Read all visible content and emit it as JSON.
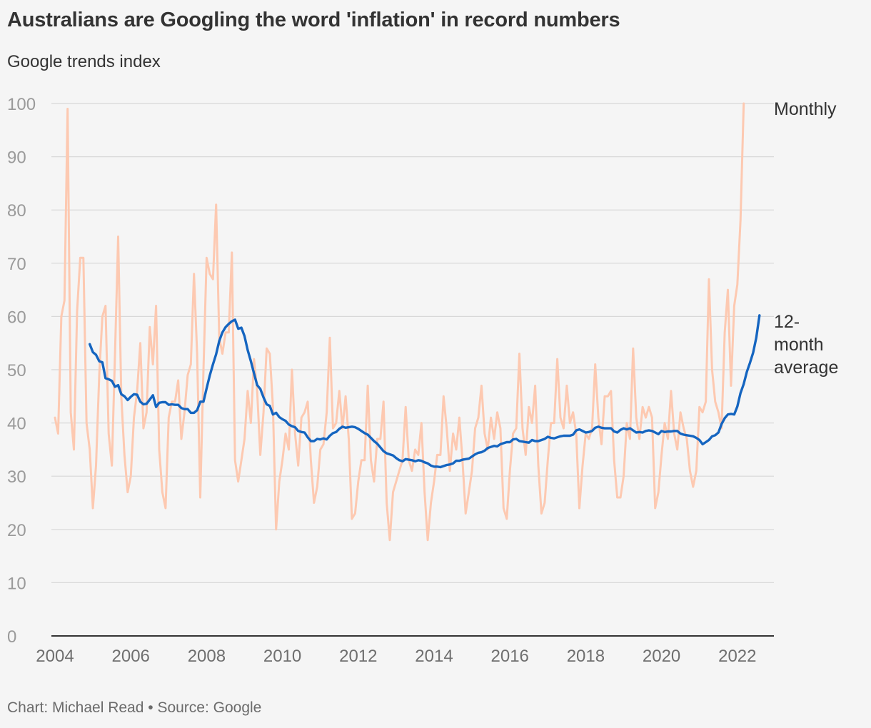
{
  "title": "Australians are Googling the word 'inflation' in record numbers",
  "subtitle": "Google trends index",
  "footer": "Chart: Michael Read • Source: Google",
  "colors": {
    "monthly": "#fdc9b1",
    "average": "#1565c0",
    "grid": "#d8d8d8",
    "axis": "#333333"
  },
  "chart_data": {
    "type": "line",
    "title": "Australians are Googling the word 'inflation' in record numbers",
    "ylabel": "Google trends index",
    "ylim": [
      0,
      100
    ],
    "yticks": [
      0,
      10,
      20,
      30,
      40,
      50,
      60,
      70,
      80,
      90,
      100
    ],
    "xlim": [
      "2004-01",
      "2022-04"
    ],
    "xticks": [
      "2004",
      "2006",
      "2008",
      "2010",
      "2012",
      "2014",
      "2016",
      "2018",
      "2020",
      "2022"
    ],
    "grid": true,
    "legend": "direct labels at line ends",
    "series": [
      {
        "name": "Monthly",
        "start": "2004-01",
        "frequency": "monthly",
        "values": [
          41,
          38,
          60,
          63,
          99,
          42,
          35,
          61,
          71,
          71,
          40,
          35,
          24,
          32,
          49,
          60,
          62,
          38,
          32,
          53,
          75,
          45,
          34,
          27,
          30,
          41,
          46,
          55,
          39,
          42,
          58,
          51,
          62,
          35,
          27,
          24,
          41,
          44,
          44,
          48,
          37,
          42,
          49,
          51,
          68,
          53,
          26,
          50,
          71,
          68,
          67,
          81,
          56,
          53,
          57,
          57,
          72,
          33,
          29,
          33,
          37,
          46,
          40,
          52,
          46,
          34,
          42,
          54,
          53,
          43,
          20,
          29,
          33,
          38,
          35,
          50,
          38,
          32,
          41,
          42,
          44,
          33,
          25,
          28,
          35,
          36,
          42,
          56,
          39,
          40,
          46,
          39,
          45,
          37,
          22,
          23,
          29,
          33,
          33,
          47,
          33,
          29,
          37,
          37,
          44,
          25,
          18,
          27,
          29,
          31,
          33,
          43,
          33,
          31,
          35,
          34,
          40,
          27,
          18,
          25,
          29,
          34,
          34,
          45,
          39,
          31,
          38,
          35,
          41,
          33,
          23,
          27,
          31,
          39,
          41,
          47,
          38,
          35,
          41,
          37,
          42,
          39,
          24,
          22,
          31,
          38,
          39,
          53,
          39,
          34,
          43,
          40,
          47,
          32,
          23,
          25,
          33,
          40,
          40,
          52,
          41,
          39,
          47,
          40,
          42,
          38,
          24,
          32,
          38,
          37,
          39,
          51,
          41,
          36,
          45,
          45,
          46,
          33,
          26,
          26,
          30,
          40,
          37,
          54,
          41,
          37,
          43,
          41,
          43,
          41,
          24,
          27,
          34,
          40,
          37,
          46,
          38,
          35,
          42,
          39,
          37,
          31,
          28,
          31,
          43,
          42,
          44,
          67,
          50,
          44,
          42,
          39,
          57,
          65,
          47,
          62,
          66,
          78,
          100
        ]
      },
      {
        "name": "12-month average",
        "start": "2004-12",
        "frequency": "monthly",
        "values": [
          54.8,
          53.3,
          52.8,
          51.6,
          51.4,
          48.4,
          48.2,
          47.9,
          46.8,
          47.1,
          45.4,
          45.0,
          44.3,
          44.9,
          45.4,
          45.3,
          44.0,
          43.5,
          43.6,
          44.4,
          45.2,
          43.0,
          43.8,
          43.9,
          43.9,
          43.4,
          43.5,
          43.4,
          43.4,
          42.8,
          42.6,
          42.6,
          41.9,
          41.9,
          42.4,
          44.0,
          44.0,
          46.5,
          48.9,
          51.0,
          52.9,
          55.4,
          57.0,
          58.0,
          58.6,
          59.1,
          59.4,
          57.7,
          57.9,
          56.3,
          53.7,
          51.6,
          49.3,
          47.1,
          46.4,
          44.8,
          43.5,
          43.2,
          41.6,
          41.9,
          41.1,
          40.7,
          40.4,
          39.7,
          39.4,
          39.2,
          38.5,
          38.3,
          38.2,
          37.3,
          36.6,
          36.6,
          37.0,
          36.9,
          37.1,
          36.9,
          37.6,
          38.1,
          38.3,
          38.9,
          39.3,
          39.1,
          39.2,
          39.3,
          39.2,
          38.9,
          38.5,
          38.1,
          37.8,
          37.2,
          36.6,
          36.1,
          35.4,
          34.7,
          34.3,
          34.1,
          33.9,
          33.4,
          33.0,
          32.8,
          33.2,
          33.1,
          33.0,
          32.8,
          33.0,
          32.9,
          32.6,
          32.4,
          32.0,
          31.8,
          31.8,
          31.7,
          31.9,
          32.1,
          32.2,
          32.4,
          32.9,
          32.9,
          33.1,
          33.2,
          33.3,
          33.7,
          34.1,
          34.4,
          34.5,
          34.8,
          35.3,
          35.5,
          35.7,
          35.6,
          36.0,
          36.2,
          36.4,
          36.4,
          36.9,
          37.0,
          36.6,
          36.5,
          36.4,
          36.3,
          36.8,
          36.6,
          36.6,
          36.8,
          37.0,
          37.4,
          37.2,
          37.1,
          37.3,
          37.5,
          37.6,
          37.6,
          37.6,
          37.8,
          38.6,
          38.8,
          38.5,
          38.2,
          38.3,
          38.5,
          39.1,
          39.3,
          39.1,
          39.0,
          39.0,
          39.0,
          38.4,
          38.2,
          38.7,
          39.0,
          38.8,
          39.0,
          38.6,
          38.2,
          38.3,
          38.2,
          38.5,
          38.6,
          38.5,
          38.2,
          37.9,
          38.5,
          38.3,
          38.4,
          38.4,
          38.5,
          38.5,
          38.0,
          37.8,
          37.7,
          37.6,
          37.5,
          37.2,
          36.8,
          36.0,
          36.4,
          36.8,
          37.5,
          37.7,
          38.2,
          39.8,
          40.9,
          41.6,
          41.7,
          41.6,
          43.1,
          45.6,
          47.3,
          49.6,
          51.3,
          53.2,
          56.0,
          60.2
        ]
      }
    ]
  }
}
